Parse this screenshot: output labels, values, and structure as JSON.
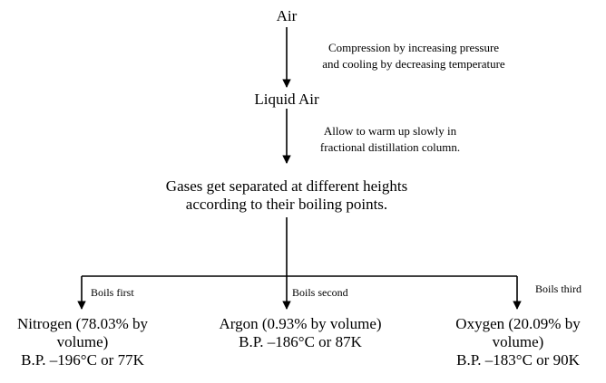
{
  "nodes": {
    "air": "Air",
    "liquid_air": "Liquid Air",
    "gases": {
      "line1": "Gases get separated at different heights",
      "line2": "according to their boiling points."
    },
    "nitrogen": {
      "line1": "Nitrogen (78.03% by",
      "line2": "volume)",
      "line3": "B.P. –196°C or 77K"
    },
    "argon": {
      "line1": "Argon (0.93% by volume)",
      "line2": "B.P. –186°C or 87K"
    },
    "oxygen": {
      "line1": "Oxygen (20.09% by",
      "line2": "volume)",
      "line3": "B.P. –183°C or 90K"
    }
  },
  "edges": {
    "compression": {
      "line1": "Compression by increasing pressure",
      "line2": "and cooling by decreasing temperature"
    },
    "warm": {
      "line1": "Allow to warm up slowly in",
      "line2": "fractional distillation column."
    },
    "boils_first": "Boils first",
    "boils_second": "Boils second",
    "boils_third": "Boils third"
  }
}
